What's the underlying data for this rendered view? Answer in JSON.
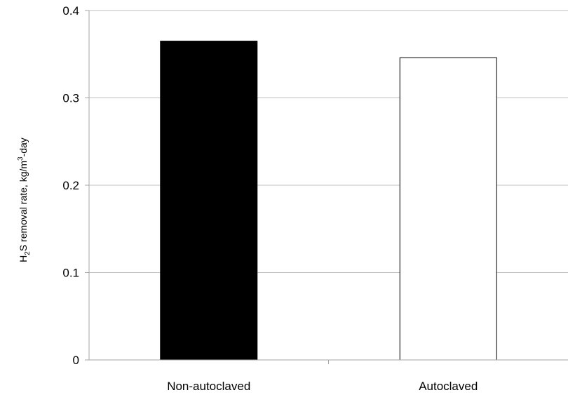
{
  "chart_data": {
    "type": "bar",
    "categories": [
      "Non-autoclaved",
      "Autoclaved"
    ],
    "values": [
      0.365,
      0.346
    ],
    "bar_colors": [
      "#000000",
      "#ffffff"
    ],
    "bar_stroke": "#000000",
    "ylabel": {
      "prefix": "H",
      "sub": "2",
      "middle": "S removal rate, kg/m",
      "sup": "3",
      "suffix": "-day"
    },
    "xlabel": "",
    "ylim": [
      0,
      0.4
    ],
    "yticks": [
      0,
      0.1,
      0.2,
      0.3,
      0.4
    ],
    "ytick_labels": [
      "0",
      "0.1",
      "0.2",
      "0.3",
      "0.4"
    ],
    "grid": "horizontal",
    "legend": "none"
  }
}
